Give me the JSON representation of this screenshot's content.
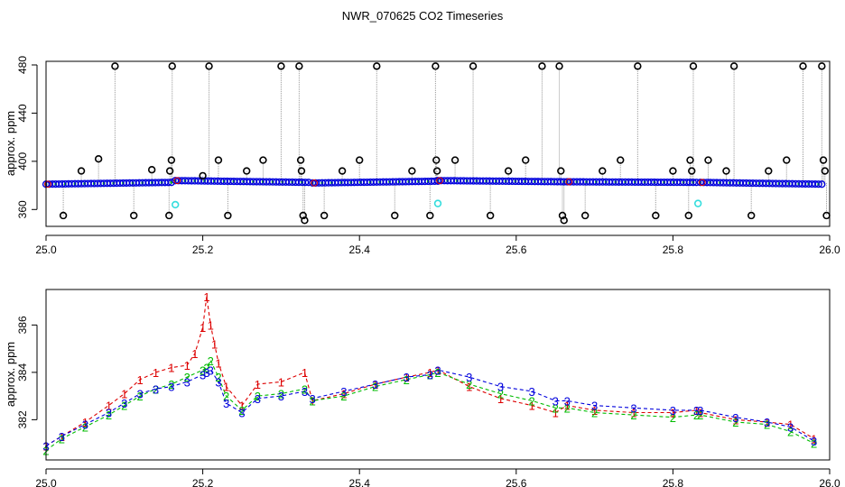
{
  "title": "NWR_070625  CO2 Timeseries",
  "colors": {
    "series_black": "#000000",
    "series_red": "#dd0000",
    "series_green": "#00bb00",
    "series_blue": "#0000dd",
    "series_cyan": "#33dddd",
    "vertical_lines": "#999999"
  },
  "chart_data": [
    {
      "type": "scatter",
      "name": "top-panel",
      "ylabel": "approx. ppm",
      "xlabel": "",
      "xlim": [
        25.0,
        26.0
      ],
      "ylim": [
        346,
        483
      ],
      "x_ticks": [
        "25.0",
        "25.2",
        "25.4",
        "25.6",
        "25.8",
        "26.0"
      ],
      "y_ticks": [
        "360",
        "400",
        "440",
        "480"
      ],
      "grid": false,
      "baseline_segments": [
        {
          "x0": 25.0,
          "x1": 25.16,
          "y0": 381,
          "y1": 382.5
        },
        {
          "x0": 25.165,
          "x1": 25.335,
          "y0": 384,
          "y1": 382.5
        },
        {
          "x0": 25.34,
          "x1": 25.5,
          "y0": 382,
          "y1": 383.5
        },
        {
          "x0": 25.5,
          "x1": 25.665,
          "y0": 384,
          "y1": 383
        },
        {
          "x0": 25.665,
          "x1": 25.83,
          "y0": 383,
          "y1": 382.5
        },
        {
          "x0": 25.835,
          "x1": 25.99,
          "y0": 382.5,
          "y1": 381
        }
      ],
      "outliers_black": [
        {
          "x": 25.022,
          "y": 355
        },
        {
          "x": 25.045,
          "y": 392
        },
        {
          "x": 25.067,
          "y": 402
        },
        {
          "x": 25.088,
          "y": 479
        },
        {
          "x": 25.112,
          "y": 355
        },
        {
          "x": 25.135,
          "y": 393
        },
        {
          "x": 25.157,
          "y": 355
        },
        {
          "x": 25.158,
          "y": 392
        },
        {
          "x": 25.16,
          "y": 401
        },
        {
          "x": 25.161,
          "y": 479
        },
        {
          "x": 25.2,
          "y": 388
        },
        {
          "x": 25.208,
          "y": 479
        },
        {
          "x": 25.22,
          "y": 401
        },
        {
          "x": 25.232,
          "y": 355
        },
        {
          "x": 25.256,
          "y": 392
        },
        {
          "x": 25.277,
          "y": 401
        },
        {
          "x": 25.3,
          "y": 479
        },
        {
          "x": 25.323,
          "y": 479
        },
        {
          "x": 25.325,
          "y": 401
        },
        {
          "x": 25.326,
          "y": 392
        },
        {
          "x": 25.328,
          "y": 355
        },
        {
          "x": 25.33,
          "y": 351
        },
        {
          "x": 25.355,
          "y": 355
        },
        {
          "x": 25.378,
          "y": 392
        },
        {
          "x": 25.4,
          "y": 401
        },
        {
          "x": 25.422,
          "y": 479
        },
        {
          "x": 25.445,
          "y": 355
        },
        {
          "x": 25.467,
          "y": 392
        },
        {
          "x": 25.49,
          "y": 355
        },
        {
          "x": 25.497,
          "y": 479
        },
        {
          "x": 25.498,
          "y": 401
        },
        {
          "x": 25.499,
          "y": 392
        },
        {
          "x": 25.522,
          "y": 401
        },
        {
          "x": 25.545,
          "y": 479
        },
        {
          "x": 25.567,
          "y": 355
        },
        {
          "x": 25.59,
          "y": 392
        },
        {
          "x": 25.612,
          "y": 401
        },
        {
          "x": 25.633,
          "y": 479
        },
        {
          "x": 25.655,
          "y": 479
        },
        {
          "x": 25.657,
          "y": 392
        },
        {
          "x": 25.659,
          "y": 355
        },
        {
          "x": 25.661,
          "y": 351
        },
        {
          "x": 25.688,
          "y": 355
        },
        {
          "x": 25.71,
          "y": 392
        },
        {
          "x": 25.733,
          "y": 401
        },
        {
          "x": 25.755,
          "y": 479
        },
        {
          "x": 25.778,
          "y": 355
        },
        {
          "x": 25.8,
          "y": 392
        },
        {
          "x": 25.82,
          "y": 355
        },
        {
          "x": 25.822,
          "y": 401
        },
        {
          "x": 25.824,
          "y": 392
        },
        {
          "x": 25.826,
          "y": 479
        },
        {
          "x": 25.845,
          "y": 401
        },
        {
          "x": 25.868,
          "y": 392
        },
        {
          "x": 25.878,
          "y": 479
        },
        {
          "x": 25.9,
          "y": 355
        },
        {
          "x": 25.922,
          "y": 392
        },
        {
          "x": 25.945,
          "y": 401
        },
        {
          "x": 25.966,
          "y": 479
        },
        {
          "x": 25.99,
          "y": 479
        },
        {
          "x": 25.992,
          "y": 401
        },
        {
          "x": 25.994,
          "y": 392
        },
        {
          "x": 25.996,
          "y": 355
        }
      ],
      "outliers_cyan": [
        {
          "x": 25.165,
          "y": 364
        },
        {
          "x": 25.5,
          "y": 365
        },
        {
          "x": 25.832,
          "y": 365
        }
      ]
    },
    {
      "type": "scatter",
      "name": "bottom-panel",
      "ylabel": "approx. ppm",
      "xlabel": "",
      "xlim": [
        25.0,
        26.0
      ],
      "ylim": [
        380.3,
        387.5
      ],
      "x_ticks": [
        "25.0",
        "25.2",
        "25.4",
        "25.6",
        "25.8",
        "26.0"
      ],
      "y_ticks": [
        "382",
        "384",
        "386"
      ],
      "grid": false,
      "series": [
        {
          "symbol": "1",
          "x": [
            25.0,
            25.02,
            25.05,
            25.08,
            25.1,
            25.12,
            25.14,
            25.16,
            25.18,
            25.19,
            25.2,
            25.205,
            25.21,
            25.215,
            25.22,
            25.23,
            25.25,
            25.27,
            25.3,
            25.33,
            25.34,
            25.38,
            25.42,
            25.46,
            25.49,
            25.5,
            25.54,
            25.58,
            25.62,
            25.65,
            25.665,
            25.7,
            25.75,
            25.8,
            25.83,
            25.835,
            25.88,
            25.92,
            25.95,
            25.98
          ],
          "y": [
            380.9,
            381.3,
            381.9,
            382.6,
            383.1,
            383.7,
            384.0,
            384.2,
            384.3,
            384.8,
            385.9,
            387.2,
            386.0,
            385.2,
            384.4,
            383.4,
            382.6,
            383.5,
            383.6,
            384.0,
            382.8,
            383.1,
            383.5,
            383.8,
            384.0,
            384.1,
            383.4,
            382.9,
            382.6,
            382.3,
            382.6,
            382.4,
            382.3,
            382.3,
            382.4,
            382.3,
            382.0,
            381.9,
            381.8,
            381.2
          ]
        },
        {
          "symbol": "2",
          "x": [
            25.0,
            25.02,
            25.05,
            25.08,
            25.1,
            25.12,
            25.14,
            25.16,
            25.18,
            25.2,
            25.205,
            25.21,
            25.22,
            25.23,
            25.25,
            25.27,
            25.3,
            25.33,
            25.34,
            25.38,
            25.42,
            25.46,
            25.49,
            25.5,
            25.54,
            25.58,
            25.62,
            25.65,
            25.665,
            25.7,
            25.75,
            25.8,
            25.83,
            25.835,
            25.88,
            25.92,
            25.95,
            25.98
          ],
          "y": [
            380.7,
            381.2,
            381.7,
            382.2,
            382.6,
            383.0,
            383.3,
            383.5,
            383.8,
            384.1,
            384.2,
            384.5,
            383.8,
            383.0,
            382.4,
            383.0,
            383.1,
            383.3,
            382.8,
            383.0,
            383.4,
            383.7,
            383.9,
            384.0,
            383.5,
            383.1,
            382.8,
            382.5,
            382.5,
            382.3,
            382.2,
            382.1,
            382.2,
            382.2,
            381.9,
            381.8,
            381.5,
            381.0
          ]
        },
        {
          "symbol": "3",
          "x": [
            25.0,
            25.02,
            25.05,
            25.08,
            25.1,
            25.12,
            25.14,
            25.16,
            25.18,
            25.2,
            25.205,
            25.21,
            25.22,
            25.23,
            25.25,
            25.27,
            25.3,
            25.33,
            25.34,
            25.38,
            25.42,
            25.46,
            25.49,
            25.5,
            25.54,
            25.58,
            25.62,
            25.65,
            25.665,
            25.7,
            25.75,
            25.8,
            25.83,
            25.835,
            25.88,
            25.92,
            25.95,
            25.98
          ],
          "y": [
            380.9,
            381.3,
            381.8,
            382.3,
            382.7,
            383.1,
            383.3,
            383.4,
            383.6,
            383.9,
            384.0,
            384.1,
            383.6,
            382.7,
            382.3,
            382.9,
            383.0,
            383.2,
            382.9,
            383.2,
            383.5,
            383.8,
            383.9,
            384.1,
            383.8,
            383.4,
            383.2,
            382.8,
            382.8,
            382.6,
            382.5,
            382.4,
            382.4,
            382.4,
            382.1,
            381.9,
            381.7,
            381.1
          ]
        }
      ]
    }
  ]
}
